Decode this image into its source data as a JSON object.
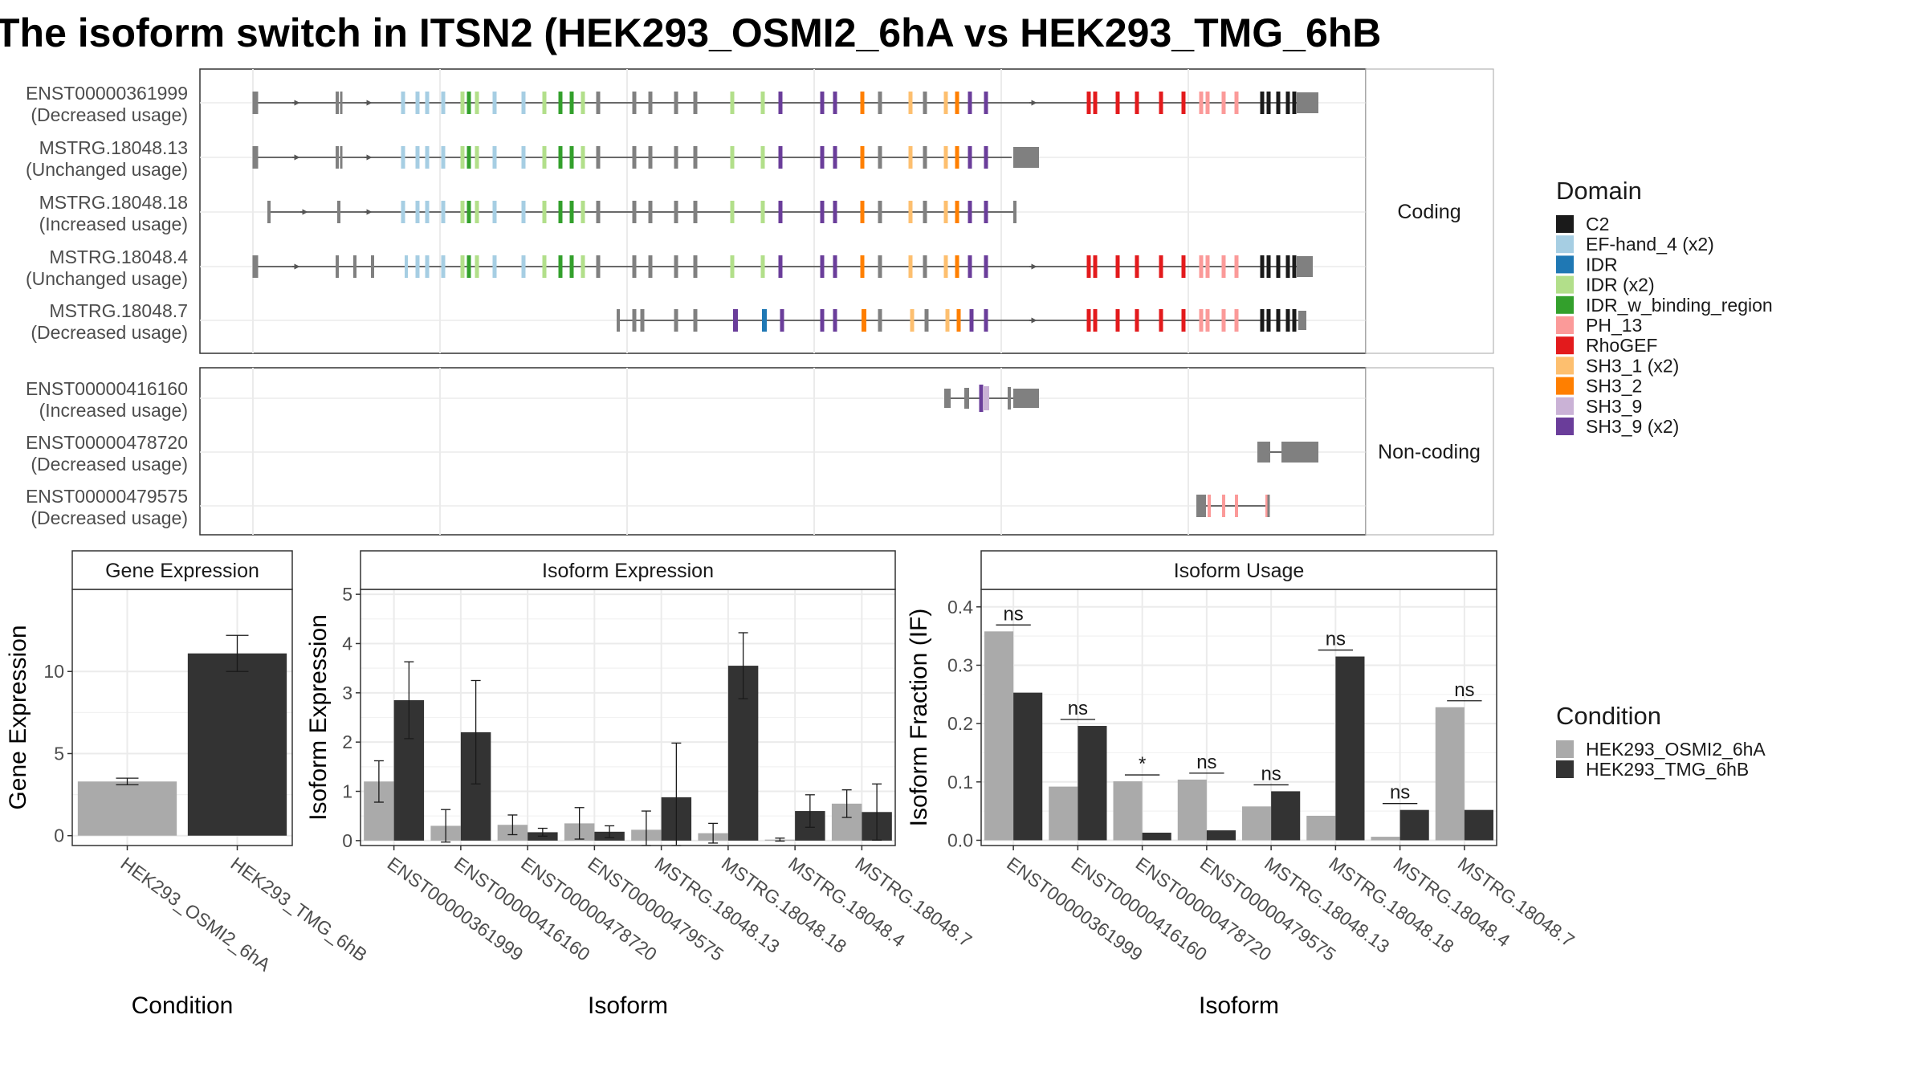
{
  "title": "The isoform switch in ITSN2 (HEK293_OSMI2_6hA vs HEK293_TMG_6hB",
  "colors": {
    "condition_a": "#aaaaaa",
    "condition_b": "#333333",
    "utr": "#808080",
    "panel_border": "#333333",
    "strip_border": "#b3b3b3",
    "grid": "#ebebeb"
  },
  "structure": {
    "coding_label": "Coding",
    "noncoding_label": "Non-coding",
    "coding": [
      {
        "id": "ENST00000361999",
        "usage": "(Decreased usage)"
      },
      {
        "id": "MSTRG.18048.13",
        "usage": "(Unchanged usage)"
      },
      {
        "id": "MSTRG.18048.18",
        "usage": "(Increased usage)"
      },
      {
        "id": "MSTRG.18048.4",
        "usage": "(Unchanged usage)"
      },
      {
        "id": "MSTRG.18048.7",
        "usage": "(Decreased usage)"
      }
    ],
    "noncoding": [
      {
        "id": "ENST00000416160",
        "usage": "(Increased usage)"
      },
      {
        "id": "ENST00000478720",
        "usage": "(Decreased usage)"
      },
      {
        "id": "ENST00000479575",
        "usage": "(Decreased usage)"
      }
    ]
  },
  "domain_legend": {
    "title": "Domain",
    "items": [
      {
        "label": "C2",
        "color": "#1a1a1a"
      },
      {
        "label": "EF-hand_4 (x2)",
        "color": "#a6cee3"
      },
      {
        "label": "IDR",
        "color": "#1f78b4"
      },
      {
        "label": "IDR (x2)",
        "color": "#b2df8a"
      },
      {
        "label": "IDR_w_binding_region",
        "color": "#33a02c"
      },
      {
        "label": "PH_13",
        "color": "#fb9a99"
      },
      {
        "label": "RhoGEF",
        "color": "#e31a1c"
      },
      {
        "label": "SH3_1 (x2)",
        "color": "#fdbf6f"
      },
      {
        "label": "SH3_2",
        "color": "#ff7f00"
      },
      {
        "label": "SH3_9",
        "color": "#cab2d6"
      },
      {
        "label": "SH3_9 (x2)",
        "color": "#6a3d9a"
      }
    ]
  },
  "condition_legend": {
    "title": "Condition",
    "items": [
      {
        "label": "HEK293_OSMI2_6hA",
        "color": "#aaaaaa"
      },
      {
        "label": "HEK293_TMG_6hB",
        "color": "#333333"
      }
    ]
  },
  "chart_data": [
    {
      "type": "bar",
      "title": "Gene Expression",
      "xlabel": "Condition",
      "ylabel": "Gene Expression",
      "categories": [
        "HEK293_OSMI2_6hA",
        "HEK293_TMG_6hB"
      ],
      "values": [
        3.3,
        11.1
      ],
      "errors": [
        0.2,
        1.1
      ],
      "yticks": [
        0,
        5,
        10
      ],
      "ylim": [
        -0.6,
        15
      ]
    },
    {
      "type": "bar",
      "title": "Isoform Expression",
      "xlabel": "Isoform",
      "ylabel": "Isoform Expression",
      "categories": [
        "ENST00000361999",
        "ENST00000416160",
        "ENST00000478720",
        "ENST00000479575",
        "MSTRG.18048.13",
        "MSTRG.18048.18",
        "MSTRG.18048.4",
        "MSTRG.18048.7"
      ],
      "series": [
        {
          "name": "HEK293_OSMI2_6hA",
          "values": [
            1.2,
            0.3,
            0.32,
            0.35,
            0.22,
            0.15,
            0.02,
            0.75
          ],
          "errors": [
            0.42,
            0.33,
            0.2,
            0.32,
            0.38,
            0.2,
            0.03,
            0.28
          ]
        },
        {
          "name": "HEK293_TMG_6hB",
          "values": [
            2.85,
            2.2,
            0.17,
            0.18,
            0.88,
            3.55,
            0.6,
            0.58
          ],
          "errors": [
            0.78,
            1.05,
            0.08,
            0.12,
            1.1,
            0.67,
            0.33,
            0.57
          ]
        }
      ],
      "yticks": [
        0,
        1,
        2,
        3,
        4,
        5
      ],
      "ylim": [
        -0.1,
        5.1
      ]
    },
    {
      "type": "bar",
      "title": "Isoform Usage",
      "xlabel": "Isoform",
      "ylabel": "Isoform Fraction (IF)",
      "categories": [
        "ENST00000361999",
        "ENST00000416160",
        "ENST00000478720",
        "ENST00000479575",
        "MSTRG.18048.13",
        "MSTRG.18048.18",
        "MSTRG.18048.4",
        "MSTRG.18048.7"
      ],
      "series": [
        {
          "name": "HEK293_OSMI2_6hA",
          "values": [
            0.358,
            0.092,
            0.101,
            0.104,
            0.058,
            0.042,
            0.006,
            0.228
          ]
        },
        {
          "name": "HEK293_TMG_6hB",
          "values": [
            0.253,
            0.196,
            0.013,
            0.017,
            0.084,
            0.315,
            0.052,
            0.052
          ]
        }
      ],
      "significance": [
        "ns",
        "ns",
        "*",
        "ns",
        "ns",
        "ns",
        "ns",
        "ns"
      ],
      "yticks": [
        0.0,
        0.1,
        0.2,
        0.3,
        0.4
      ],
      "ytick_labels": [
        "0.0",
        "0.1",
        "0.2",
        "0.3",
        "0.4"
      ],
      "ylim": [
        -0.009,
        0.43
      ]
    }
  ]
}
